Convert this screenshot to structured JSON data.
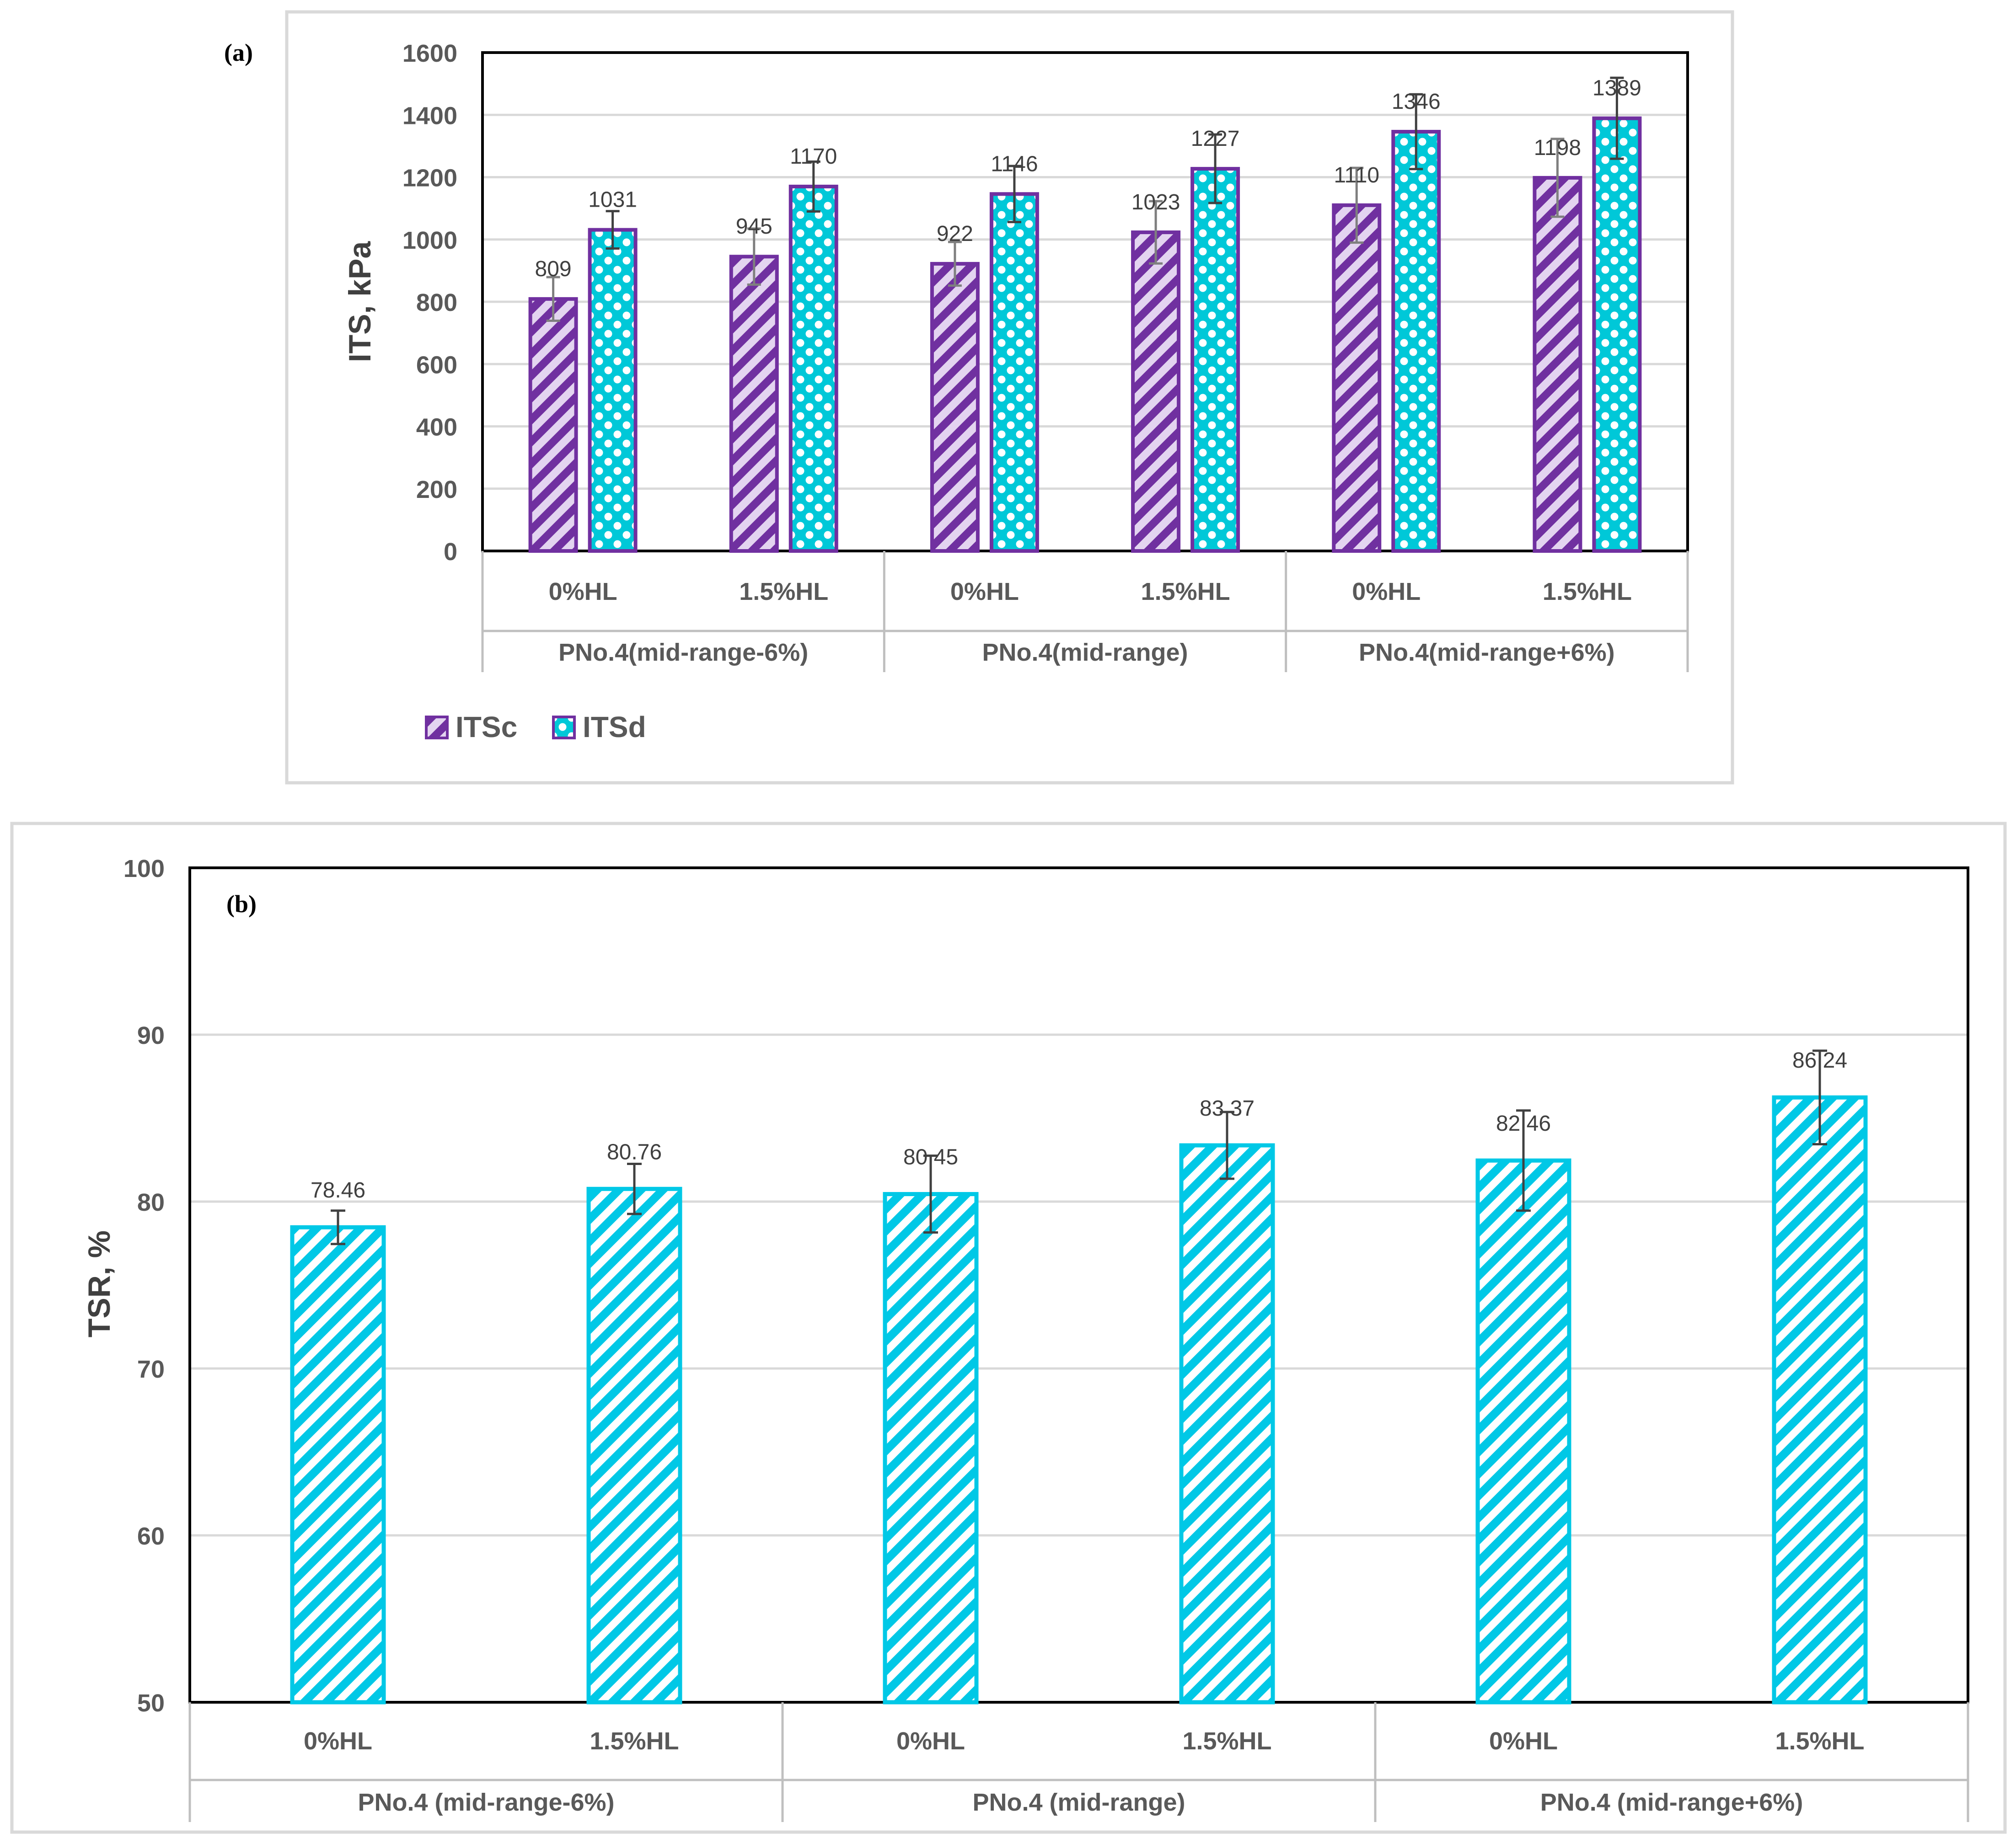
{
  "chart_data": [
    {
      "panel_label": "(a)",
      "type": "bar",
      "title": "",
      "xlabel": "",
      "ylabel": "ITS, kPa",
      "ylim": [
        0,
        1600
      ],
      "yticks": [
        0,
        200,
        400,
        600,
        800,
        1000,
        1200,
        1400,
        1600
      ],
      "grid": true,
      "legend": "bottom-left",
      "groups": [
        "PNo.4(mid-range-6%)",
        "PNo.4(mid-range)",
        "PNo.4(mid-range+6%)"
      ],
      "categories": [
        "0%HL",
        "1.5%HL",
        "0%HL",
        "1.5%HL",
        "0%HL",
        "1.5%HL"
      ],
      "series": [
        {
          "name": "ITSc",
          "values": [
            809,
            945,
            922,
            1023,
            1110,
            1198
          ],
          "error": [
            70,
            90,
            70,
            100,
            120,
            125
          ],
          "color": "#7030A0",
          "pattern": "diagonal-stripes"
        },
        {
          "name": "ITSd",
          "values": [
            1031,
            1170,
            1146,
            1227,
            1346,
            1389
          ],
          "error": [
            60,
            80,
            90,
            110,
            120,
            130
          ],
          "color": "#00C8D8",
          "edge_color": "#7030A0",
          "pattern": "dots"
        }
      ]
    },
    {
      "panel_label": "(b)",
      "type": "bar",
      "title": "",
      "xlabel": "",
      "ylabel": "TSR, %",
      "ylim": [
        50,
        100
      ],
      "yticks": [
        50,
        60,
        70,
        80,
        90,
        100
      ],
      "grid": true,
      "groups": [
        "PNo.4 (mid-range-6%)",
        "PNo.4 (mid-range)",
        "PNo.4 (mid-range+6%)"
      ],
      "categories": [
        "0%HL",
        "1.5%HL",
        "0%HL",
        "1.5%HL",
        "0%HL",
        "1.5%HL"
      ],
      "series": [
        {
          "values": [
            78.46,
            80.76,
            80.45,
            83.37,
            82.46,
            86.24
          ],
          "labels": [
            "78.46",
            "80.76",
            "80.45",
            "83.37",
            "82.46",
            "86.24"
          ],
          "error": [
            1.0,
            1.5,
            2.3,
            2.0,
            3.0,
            2.8
          ],
          "color": "#00C8E6",
          "pattern": "diagonal-stripes"
        }
      ]
    }
  ]
}
